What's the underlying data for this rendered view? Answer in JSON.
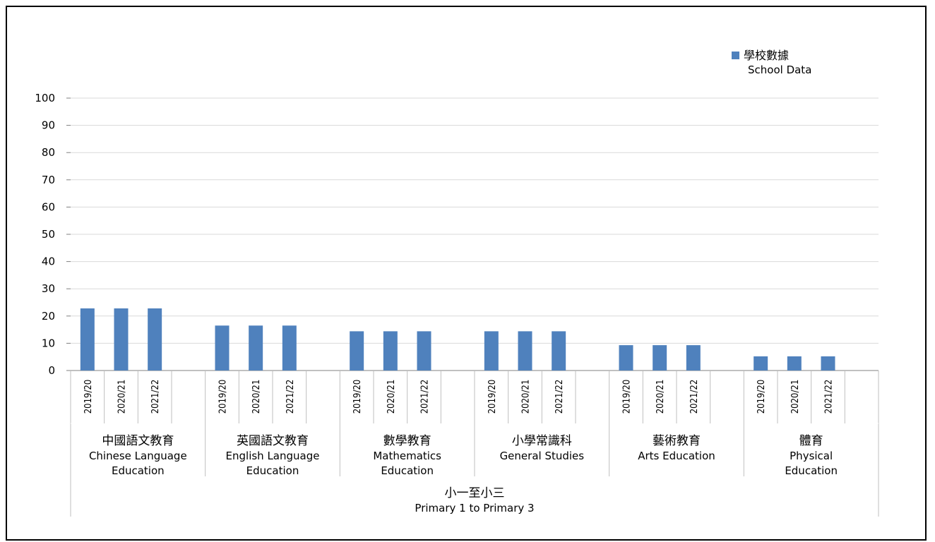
{
  "chart_data": {
    "type": "bar",
    "ylim": [
      0,
      100
    ],
    "yticks": [
      0,
      10,
      20,
      30,
      40,
      50,
      60,
      70,
      80,
      90,
      100
    ],
    "years": [
      "2019/20",
      "2020/21",
      "2021/22"
    ],
    "categories": [
      {
        "zh": "中國語文教育",
        "en": [
          "Chinese Language",
          "Education"
        ],
        "values": [
          22.8,
          22.8,
          22.8
        ]
      },
      {
        "zh": "英國語文教育",
        "en": [
          "English Language",
          "Education"
        ],
        "values": [
          16.5,
          16.5,
          16.5
        ]
      },
      {
        "zh": "數學教育",
        "en": [
          "Mathematics",
          "Education"
        ],
        "values": [
          14.4,
          14.4,
          14.4
        ]
      },
      {
        "zh": "小學常識科",
        "en": [
          "General Studies"
        ],
        "values": [
          14.4,
          14.4,
          14.4
        ]
      },
      {
        "zh": "藝術教育",
        "en": [
          "Arts Education"
        ],
        "values": [
          9.3,
          9.3,
          9.3
        ]
      },
      {
        "zh": "體育",
        "en": [
          "Physical",
          "Education"
        ],
        "values": [
          5.2,
          5.2,
          5.2
        ]
      }
    ],
    "group_label": {
      "zh": "小一至小三",
      "en": "Primary 1 to Primary 3"
    },
    "legend": {
      "zh": "學校數據",
      "en": "School Data",
      "color": "#4f81bd",
      "position": "top-right"
    },
    "grid": true
  }
}
